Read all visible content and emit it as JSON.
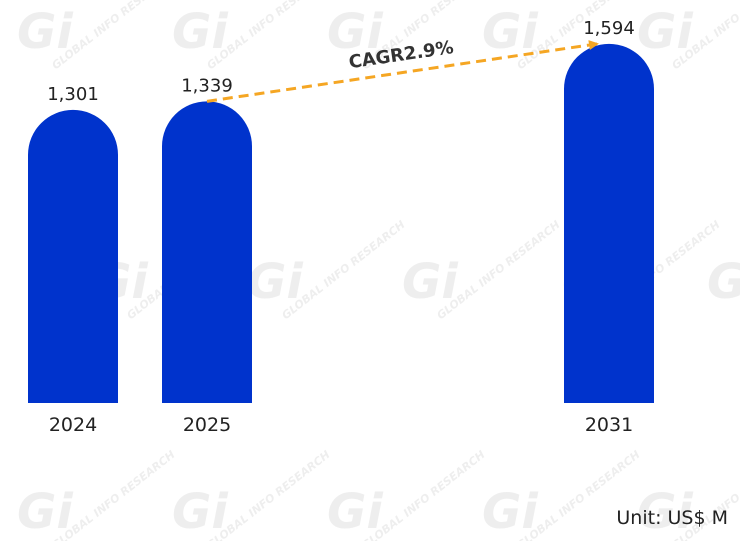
{
  "unit_label": "Unit: US$ M",
  "watermark": {
    "logo": "Gi",
    "text": "GLOBAL INFO RESEARCH"
  },
  "chart_data": {
    "type": "bar",
    "categories": [
      "2024",
      "2025",
      "2031"
    ],
    "values": [
      1301,
      1339,
      1594
    ],
    "value_labels": [
      "1,301",
      "1,339",
      "1,594"
    ],
    "ylim": [
      0,
      1700
    ],
    "bar_color": "#0033cc",
    "annotation": {
      "text": "CAGR2.9%",
      "from": "2025",
      "to": "2031",
      "color": "#f5a623"
    },
    "grid": false
  }
}
